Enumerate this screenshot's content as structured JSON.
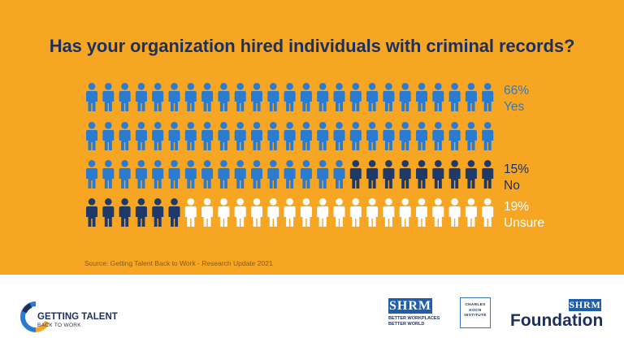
{
  "title": "Has your organization hired individuals with criminal records?",
  "source": "Source: Getting Talent Back to Work - Research Update 2021",
  "colors": {
    "yes": "#2b7bd1",
    "no": "#1f3a68",
    "unsure": "#ffffff",
    "background": "#f6a623",
    "title": "#1d2f5c"
  },
  "chart_data": {
    "type": "pictogram",
    "title": "Has your organization hired individuals with criminal records?",
    "rows": 4,
    "columns": 25,
    "series": [
      {
        "name": "Yes",
        "percent_label": "66%",
        "value": 66
      },
      {
        "name": "No",
        "percent_label": "15%",
        "value": 15
      },
      {
        "name": "Unsure",
        "percent_label": "19%",
        "value": 19
      }
    ]
  },
  "footer": {
    "gt_title": "GETTING TALENT",
    "gt_subtitle": "BACK TO WORK",
    "shrm_logo": "SHRM",
    "shrm_tagline_1": "BETTER WORKPLACES",
    "shrm_tagline_2": "BETTER WORLD",
    "ck_line1": "CHARLES",
    "ck_line2": "KOCH",
    "ck_line3": "INSTITUTE",
    "foundation_logo": "SHRM",
    "foundation_word": "Foundation"
  }
}
